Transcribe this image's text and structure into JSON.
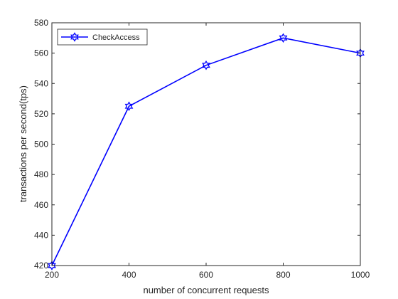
{
  "chart_data": {
    "type": "line",
    "xlabel": "number of concurrent requests",
    "ylabel": "transactions per second(tps)",
    "xlim": [
      200,
      1000
    ],
    "ylim": [
      420,
      580
    ],
    "x_ticks": [
      200,
      400,
      600,
      800,
      1000
    ],
    "y_ticks": [
      420,
      440,
      460,
      480,
      500,
      520,
      540,
      560,
      580
    ],
    "grid": false,
    "legend_position": "top-left",
    "series": [
      {
        "name": "CheckAccess",
        "x": [
          200,
          400,
          600,
          800,
          1000
        ],
        "y": [
          420,
          525,
          552,
          570,
          560
        ],
        "color": "#0000ff",
        "marker": "hexagram"
      }
    ]
  }
}
